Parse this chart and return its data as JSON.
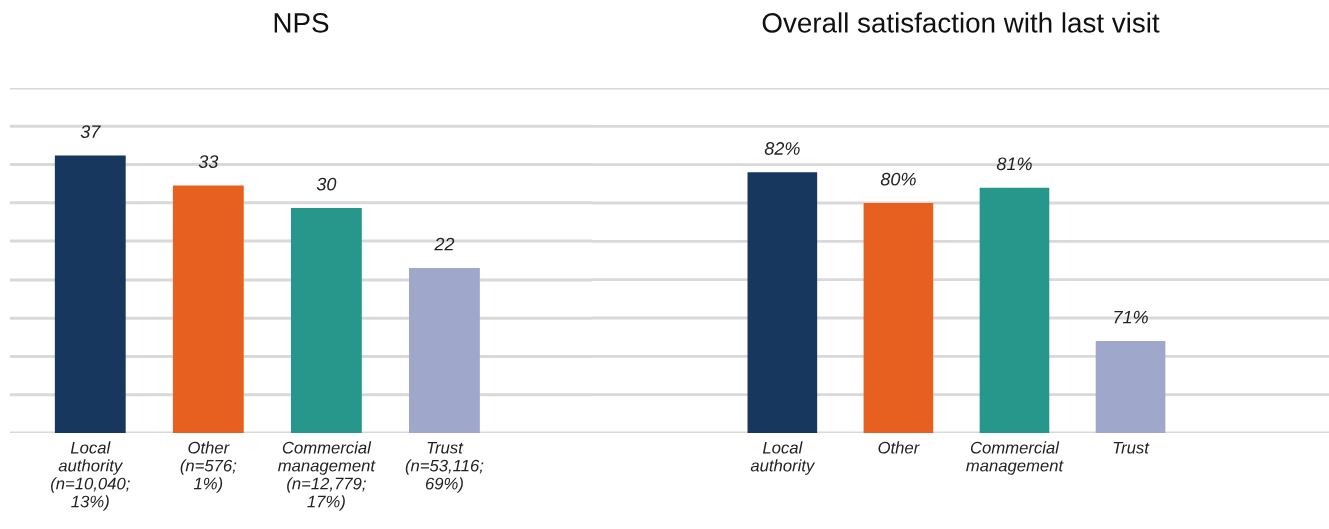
{
  "chart_data": [
    {
      "type": "bar",
      "title": "NPS",
      "categories": [
        "Local\nauthority\n(n=10,040;\n13%)",
        "Other\n(n=576;\n1%)",
        "Commercial\nmanagement\n(n=12,779;\n17%)",
        "Trust\n(n=53,116;\n69%)"
      ],
      "values": [
        37,
        33,
        30,
        22
      ],
      "colors": [
        "#17375e",
        "#e8601f",
        "#26978a",
        "#9fa8cb"
      ],
      "ylim": [
        0,
        46
      ],
      "yticks": [
        {
          "value": 0,
          "label": null
        },
        {
          "value": 5.1,
          "label": null
        },
        {
          "value": 10.2,
          "label": null
        },
        {
          "value": 15.3,
          "label": null
        },
        {
          "value": 20.4,
          "label": null
        },
        {
          "value": 25.6,
          "label": null
        },
        {
          "value": 30.7,
          "label": null
        },
        {
          "value": 35.8,
          "label": null
        },
        {
          "value": 40.9,
          "label": null
        },
        {
          "value": 46,
          "label": null
        }
      ],
      "grid": "y",
      "data_labels": true,
      "tick_labels": "x"
    },
    {
      "type": "bar",
      "title": "Overall satisfaction with last visit",
      "categories": [
        "Local\nauthority",
        "Other",
        "Commercial\nmanagement",
        "Trust"
      ],
      "values": [
        82,
        80,
        81,
        71
      ],
      "value_labels": [
        "82%",
        "80%",
        "81%",
        "71%"
      ],
      "colors": [
        "#17375e",
        "#e8601f",
        "#26978a",
        "#9fa8cb"
      ],
      "ylim": [
        65,
        87.5
      ],
      "yticks": [
        {
          "value": 65,
          "label": null
        },
        {
          "value": 67.5,
          "label": null
        },
        {
          "value": 70,
          "label": null
        },
        {
          "value": 72.5,
          "label": null
        },
        {
          "value": 75,
          "label": null
        },
        {
          "value": 77.5,
          "label": null
        },
        {
          "value": 80,
          "label": null
        },
        {
          "value": 82.5,
          "label": null
        },
        {
          "value": 85,
          "label": null
        },
        {
          "value": 87.5,
          "label": null
        }
      ],
      "grid": "y",
      "tick_labels": "x"
    }
  ]
}
